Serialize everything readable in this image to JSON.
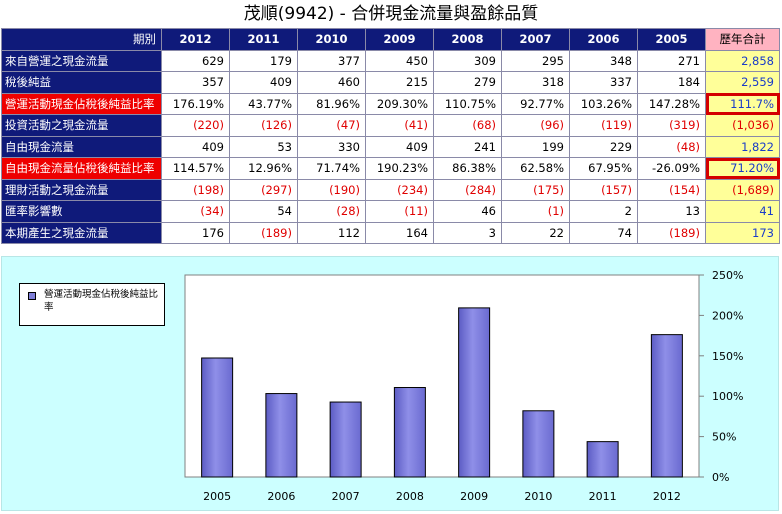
{
  "title": "茂順(9942) - 合併現金流量與盈餘品質",
  "table": {
    "corner_label": "期別",
    "years": [
      "2012",
      "2011",
      "2010",
      "2009",
      "2008",
      "2007",
      "2006",
      "2005"
    ],
    "total_label": "歷年合計",
    "rows": [
      {
        "label": "來自營運之現金流量",
        "values": [
          "629",
          "179",
          "377",
          "450",
          "309",
          "295",
          "348",
          "271"
        ],
        "total": "2,858",
        "highlight": false
      },
      {
        "label": "稅後純益",
        "values": [
          "357",
          "409",
          "460",
          "215",
          "279",
          "318",
          "337",
          "184"
        ],
        "total": "2,559",
        "highlight": false
      },
      {
        "label": "營運活動現金佔稅後純益比率",
        "values": [
          "176.19%",
          "43.77%",
          "81.96%",
          "209.30%",
          "110.75%",
          "92.77%",
          "103.26%",
          "147.28%"
        ],
        "total": "111.7%",
        "highlight": true
      },
      {
        "label": "投資活動之現金流量",
        "values": [
          "(220)",
          "(126)",
          "(47)",
          "(41)",
          "(68)",
          "(96)",
          "(119)",
          "(319)"
        ],
        "total": "(1,036)",
        "highlight": false
      },
      {
        "label": "自由現金流量",
        "values": [
          "409",
          "53",
          "330",
          "409",
          "241",
          "199",
          "229",
          "(48)"
        ],
        "total": "1,822",
        "highlight": false
      },
      {
        "label": "自由現金流量佔稅後純益比率",
        "values": [
          "114.57%",
          "12.96%",
          "71.74%",
          "190.23%",
          "86.38%",
          "62.58%",
          "67.95%",
          "-26.09%"
        ],
        "total": "71.20%",
        "highlight": true
      },
      {
        "label": "理財活動之現金流量",
        "values": [
          "(198)",
          "(297)",
          "(190)",
          "(234)",
          "(284)",
          "(175)",
          "(157)",
          "(154)"
        ],
        "total": "(1,689)",
        "highlight": false
      },
      {
        "label": "匯率影響數",
        "values": [
          "(34)",
          "54",
          "(28)",
          "(11)",
          "46",
          "(1)",
          "2",
          "13"
        ],
        "total": "41",
        "highlight": false
      },
      {
        "label": "本期產生之現金流量",
        "values": [
          "176",
          "(189)",
          "112",
          "164",
          "3",
          "22",
          "74",
          "(189)"
        ],
        "total": "173",
        "highlight": false
      }
    ]
  },
  "chart_data": {
    "type": "bar",
    "categories": [
      "2005",
      "2006",
      "2007",
      "2008",
      "2009",
      "2010",
      "2011",
      "2012"
    ],
    "series": [
      {
        "name": "營運活動現金佔稅後純益比率",
        "values": [
          147.28,
          103.26,
          92.77,
          110.75,
          209.3,
          81.96,
          43.77,
          176.19
        ]
      }
    ],
    "yticks": [
      "0%",
      "50%",
      "100%",
      "150%",
      "200%",
      "250%"
    ],
    "ylim": [
      0,
      250
    ],
    "grid": false,
    "legend_position": "top-left",
    "bar_color": "#8f8fe8"
  }
}
